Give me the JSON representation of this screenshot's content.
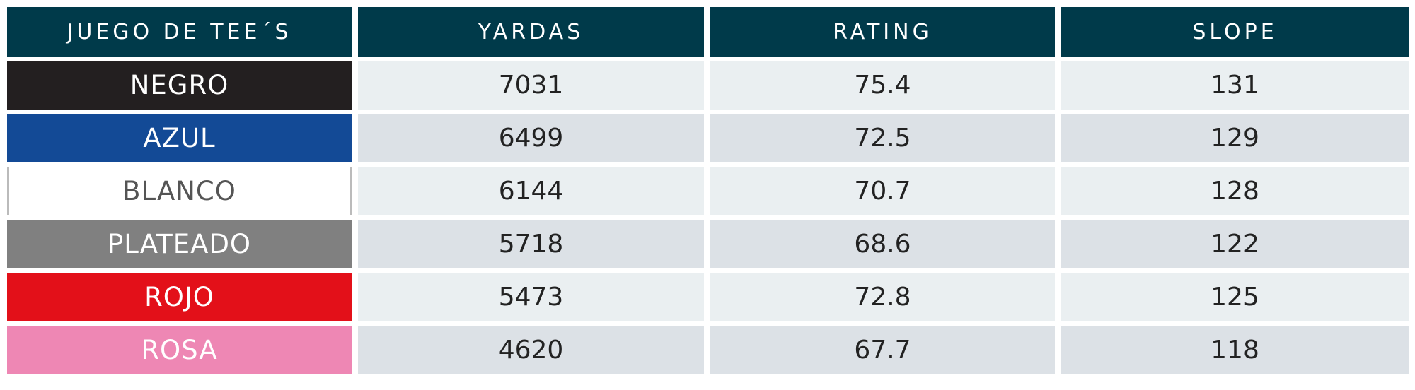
{
  "table": {
    "header": [
      "JUEGO DE TEE´S",
      "YARDAS",
      "RATING",
      "SLOPE"
    ],
    "rows": [
      {
        "tee": "NEGRO",
        "color": "#231f20",
        "text_color": "#ffffff",
        "cells": [
          "7031",
          "75.4",
          "131"
        ]
      },
      {
        "tee": "AZUL",
        "color": "#134a96",
        "text_color": "#ffffff",
        "cells": [
          "6499",
          "72.5",
          "129"
        ]
      },
      {
        "tee": "BLANCO",
        "color": "#ffffff",
        "text_color": "#555555",
        "cells": [
          "6144",
          "70.7",
          "128"
        ]
      },
      {
        "tee": "PLATEADO",
        "color": "#808080",
        "text_color": "#ffffff",
        "cells": [
          "5718",
          "68.6",
          "122"
        ]
      },
      {
        "tee": "ROJO",
        "color": "#e31019",
        "text_color": "#ffffff",
        "cells": [
          "5473",
          "72.8",
          "125"
        ]
      },
      {
        "tee": "ROSA",
        "color": "#ee87b4",
        "text_color": "#ffffff",
        "cells": [
          "4620",
          "67.7",
          "118"
        ]
      }
    ]
  }
}
